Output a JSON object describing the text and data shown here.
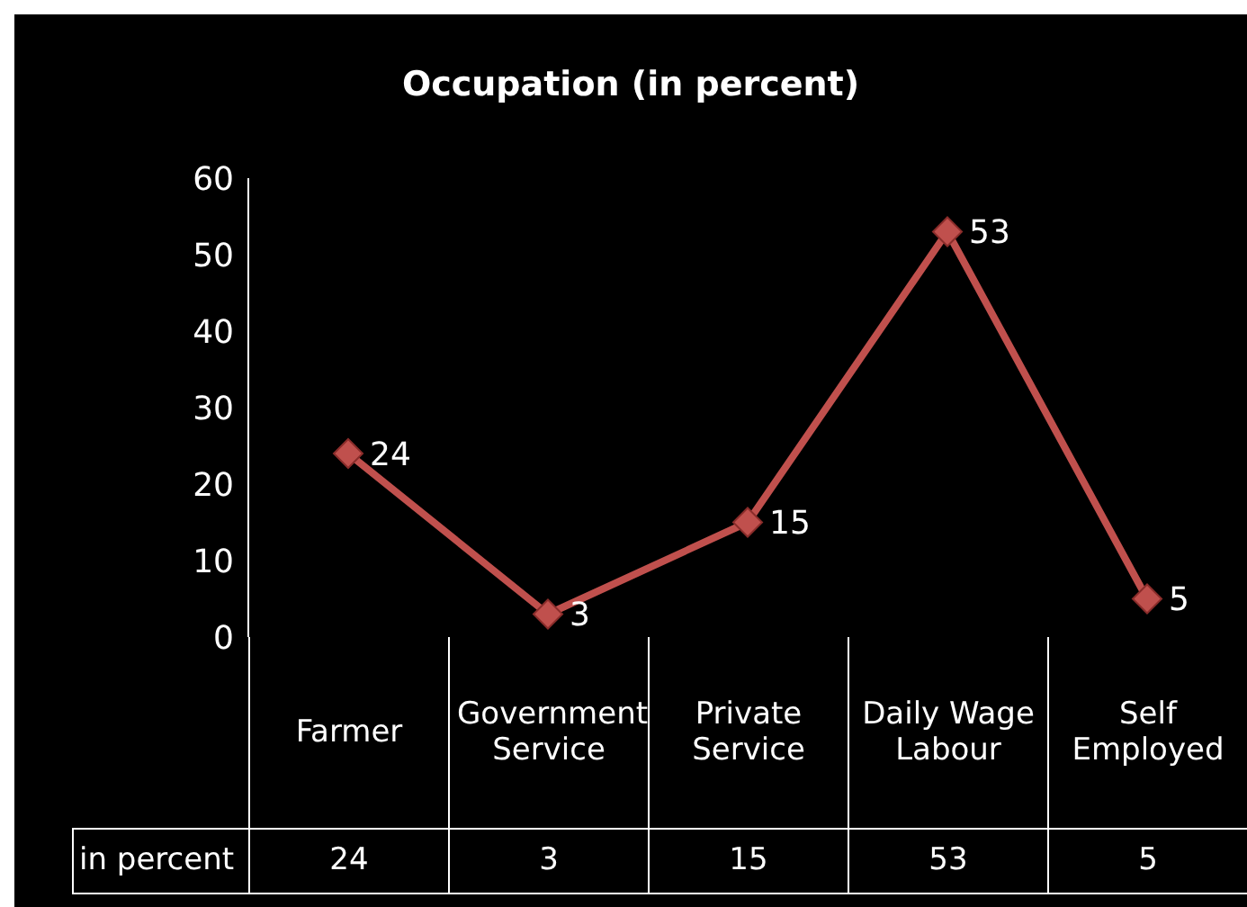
{
  "chart_data": {
    "type": "line",
    "title": "Occupation (in percent)",
    "categories": [
      "Farmer",
      "Government Service",
      "Private Service",
      "Daily Wage Labour",
      "Self Employed"
    ],
    "series": [
      {
        "name": "in percent",
        "color": "#c0504d",
        "values": [
          24,
          3,
          15,
          53,
          5
        ],
        "value_labels": [
          "24",
          "3",
          "15",
          "53",
          "5"
        ]
      }
    ],
    "ylim": [
      0,
      60
    ],
    "yticks": [
      0,
      10,
      20,
      30,
      40,
      50,
      60
    ],
    "marker": "diamond",
    "annotations": [
      "24",
      "3",
      "15",
      "53",
      "5"
    ]
  }
}
